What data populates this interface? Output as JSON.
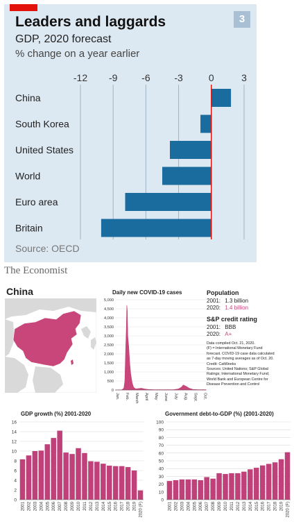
{
  "top": {
    "title": "Leaders and laggards",
    "subtitle": "GDP, 2020 forecast",
    "unit_line": "% change on a year earlier",
    "badge": "3",
    "source": "Source: OECD",
    "brand": "The Economist",
    "colors": {
      "panel": "#dde9f2",
      "bar": "#1a6b9e",
      "red": "#e3120b"
    }
  },
  "china_panel": {
    "title": "China",
    "population_heading": "Population",
    "pop_2001_label": "2001:",
    "pop_2001_value": "1.3 billion",
    "pop_2020_label": "2020:",
    "pop_2020_value": "1.4 billion",
    "rating_heading": "S&P credit rating",
    "rating_2001_label": "2001:",
    "rating_2001_value": "BBB",
    "rating_2020_label": "2020:",
    "rating_2020_value": "A+",
    "notes": [
      "Data compiled Oct. 21, 2020.",
      "(F) = International Monetary Fund",
      "forecast. COVID-19 case data calculated",
      "as 7-day moving averages as of Oct. 20.",
      "Credit: CatWeeks",
      "Sources: United Nations; S&P Global",
      "Ratings; International Monetary Fund;",
      "World Bank and European Centre for",
      "Disease Prevention and Control"
    ],
    "colors": {
      "pink": "#c8467a",
      "map": "#d9d9d9",
      "bar_dark": "#c0417a"
    }
  },
  "chart_data": [
    {
      "type": "bar",
      "orientation": "horizontal",
      "title": "Leaders and laggards",
      "subtitle": "GDP, 2020 forecast",
      "ylabel": "% change on a year earlier",
      "categories": [
        "China",
        "South Korea",
        "United States",
        "World",
        "Euro area",
        "Britain"
      ],
      "values": [
        1.8,
        -1.0,
        -3.8,
        -4.5,
        -7.9,
        -10.1
      ],
      "xlim": [
        -12,
        3
      ],
      "ticks": [
        -12,
        -9,
        -6,
        -3,
        0,
        3
      ],
      "tick_labels": [
        "-12",
        "-9",
        "-6",
        "-3",
        "0",
        "3"
      ],
      "grid": true
    },
    {
      "type": "area",
      "title": "Daily new COVID-19 cases",
      "x_tick_labels": [
        "Jan.",
        "Feb.",
        "March",
        "April",
        "May",
        "June",
        "July",
        "Aug.",
        "Sept.",
        "Oct."
      ],
      "y_tick_labels": [
        "0",
        "500",
        "1,000",
        "1,500",
        "2,000",
        "2,500",
        "3,000",
        "3,500",
        "4,000",
        "4,500",
        "5,000"
      ],
      "ylim": [
        0,
        5000
      ],
      "x": [
        0,
        0.7,
        0.9,
        1.0,
        1.1,
        1.15,
        1.2,
        1.25,
        1.3,
        1.4,
        1.5,
        1.6,
        1.75,
        1.9,
        2.1,
        2.4,
        2.7,
        3.0,
        3.4,
        4.0,
        5.0,
        6.0,
        6.5,
        6.8,
        7.0,
        7.3,
        7.6,
        8.0,
        8.5,
        9.0,
        9.3
      ],
      "values": [
        0,
        10,
        100,
        500,
        2500,
        3300,
        4700,
        4400,
        3000,
        2400,
        1500,
        900,
        400,
        150,
        60,
        80,
        100,
        60,
        30,
        20,
        15,
        20,
        60,
        150,
        280,
        200,
        100,
        30,
        20,
        15,
        15
      ]
    },
    {
      "type": "bar",
      "title": "GDP growth (%) 2001-2020",
      "categories": [
        "2001",
        "2002",
        "2003",
        "2004",
        "2005",
        "2006",
        "2007",
        "2008",
        "2009",
        "2010",
        "2011",
        "2012",
        "2013",
        "2014",
        "2015",
        "2016",
        "2017",
        "2018",
        "2019",
        "2020 (F)"
      ],
      "values": [
        8.3,
        9.1,
        10.0,
        10.1,
        11.4,
        12.7,
        14.2,
        9.7,
        9.4,
        10.6,
        9.6,
        7.9,
        7.8,
        7.4,
        7.0,
        6.9,
        6.9,
        6.7,
        6.0,
        1.9
      ],
      "ylim": [
        0,
        16
      ],
      "ticks": [
        0,
        2,
        4,
        6,
        8,
        10,
        12,
        14,
        16
      ],
      "grid": true
    },
    {
      "type": "bar",
      "title": "Government debt-to-GDP (%) (2001-2020)",
      "categories": [
        "2001",
        "2002",
        "2003",
        "2004",
        "2005",
        "2006",
        "2007",
        "2008",
        "2009",
        "2010",
        "2011",
        "2012",
        "2013",
        "2014",
        "2015",
        "2016",
        "2017",
        "2018",
        "2019",
        "2020 (F)"
      ],
      "values": [
        24,
        25,
        26,
        26,
        26,
        25,
        29,
        27,
        34,
        33,
        34,
        34,
        36,
        39,
        41,
        44,
        46,
        48,
        52,
        61
      ],
      "ylim": [
        0,
        100
      ],
      "ticks": [
        0,
        10,
        20,
        30,
        40,
        50,
        60,
        70,
        80,
        90,
        100
      ],
      "grid": true
    }
  ]
}
